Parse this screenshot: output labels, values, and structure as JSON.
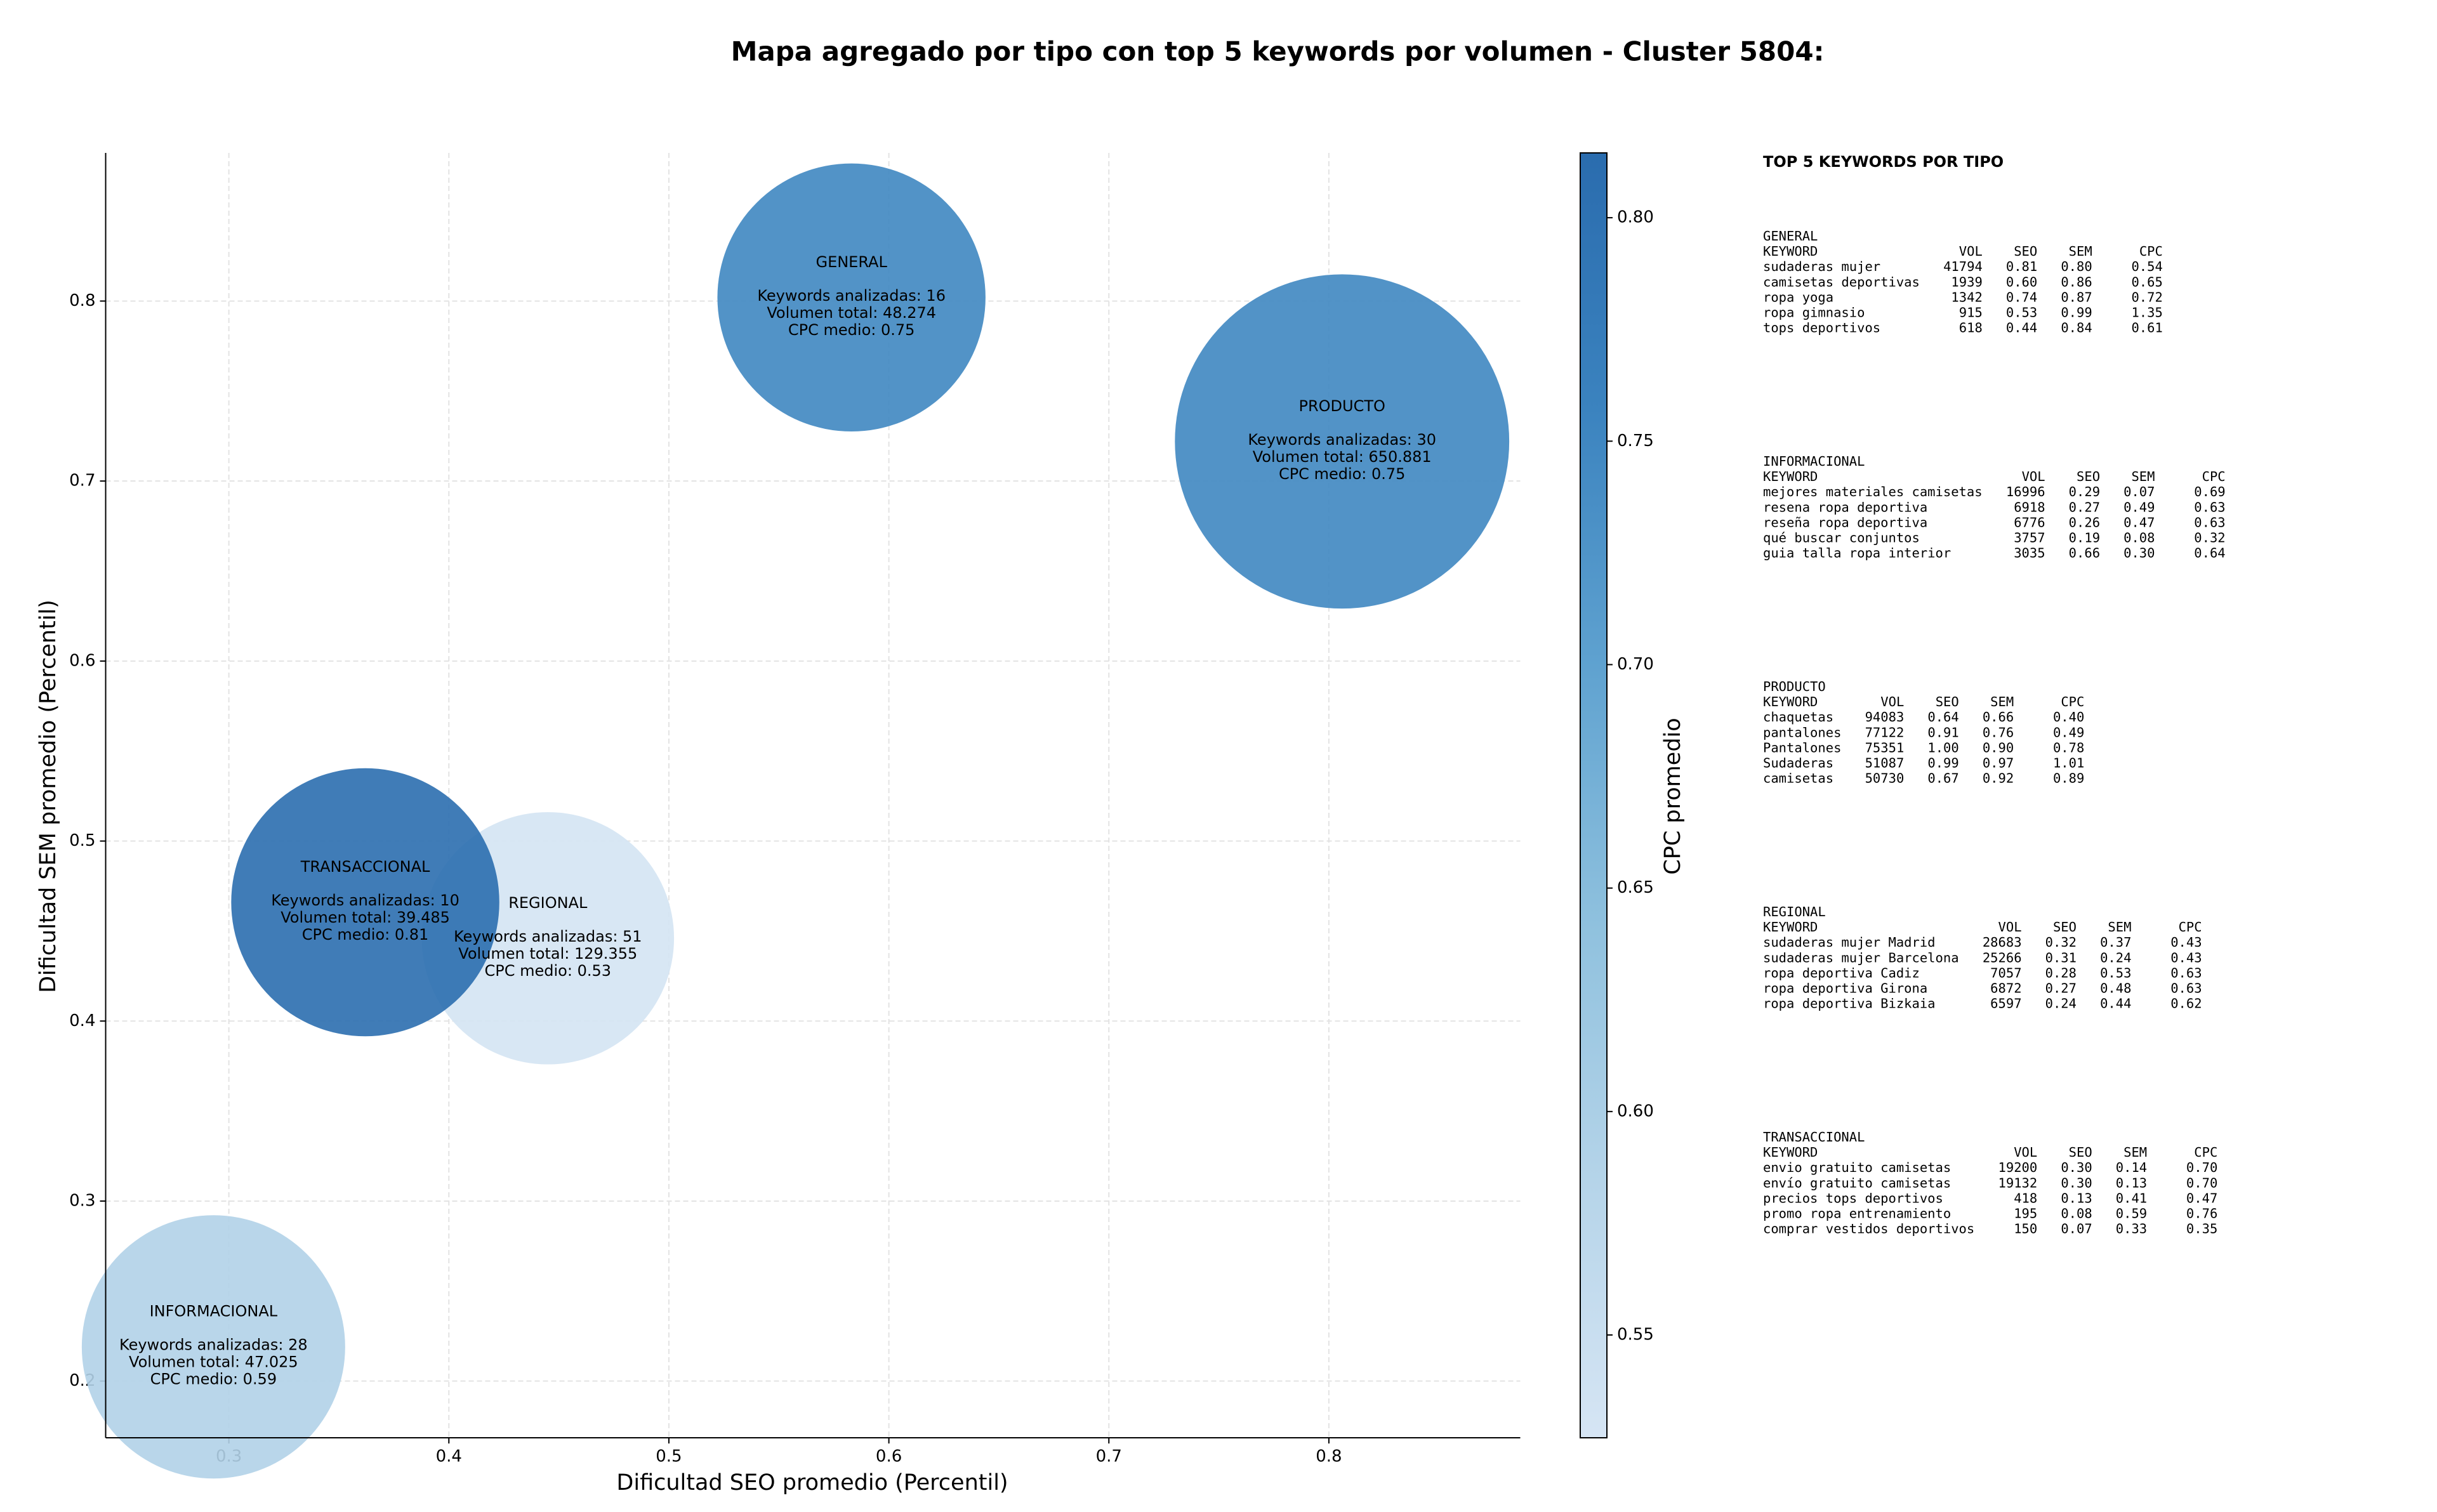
{
  "chart_data": {
    "type": "bubble",
    "title": "Mapa agregado por tipo con top 5 keywords por volumen - Cluster 5804:",
    "xlabel": "Dificultad SEO promedio (Percentil)",
    "ylabel": "Dificultad SEM promedio (Percentil)",
    "xlim": [
      0.244,
      0.887
    ],
    "ylim": [
      0.1685,
      0.8823
    ],
    "xticks": [
      0.3,
      0.4,
      0.5,
      0.6,
      0.7,
      0.8
    ],
    "yticks": [
      0.2,
      0.3,
      0.4,
      0.5,
      0.6,
      0.7,
      0.8
    ],
    "grid": true,
    "colorbar": {
      "label": "CPC promedio",
      "clim": [
        0.527,
        0.8145
      ],
      "ticks": [
        0.55,
        {
          "value": 0.6,
          "label": "0.60"
        },
        0.65,
        {
          "value": 0.7,
          "label": "0.70"
        },
        0.75,
        {
          "value": 0.8,
          "label": "0.80"
        }
      ],
      "colormap": [
        "#d6e5f4",
        "#b5d4e9",
        "#8fc1de",
        "#5fa2d0",
        "#3b83bf",
        "#2a6cae"
      ]
    },
    "points": [
      {
        "name": "GENERAL",
        "x": 0.583,
        "y": 0.802,
        "size": 7225,
        "cpc": 0.75,
        "lines": [
          "Keywords analizadas: 16",
          "Volumen total: 48.274",
          "CPC medio: 0.75"
        ]
      },
      {
        "name": "INFORMACIONAL",
        "x": 0.293,
        "y": 0.219,
        "size": 6972,
        "cpc": 0.59,
        "lines": [
          "Keywords analizadas: 28",
          "Volumen total: 47.025",
          "CPC medio: 0.59"
        ]
      },
      {
        "name": "PRODUCTO",
        "x": 0.806,
        "y": 0.722,
        "size": 11236,
        "cpc": 0.75,
        "lines": [
          "Keywords analizadas: 30",
          "Volumen total: 650.881",
          "CPC medio: 0.75"
        ]
      },
      {
        "name": "REGIONAL",
        "x": 0.445,
        "y": 0.446,
        "size": 6400,
        "cpc": 0.53,
        "lines": [
          "Keywords analizadas: 51",
          "Volumen total: 129.355",
          "CPC medio: 0.53"
        ]
      },
      {
        "name": "TRANSACCIONAL",
        "x": 0.362,
        "y": 0.466,
        "size": 7225,
        "cpc": 0.81,
        "lines": [
          "Keywords analizadas: 10",
          "Volumen total: 39.485",
          "CPC medio: 0.81"
        ]
      }
    ]
  },
  "keyword_panel": {
    "title": "TOP 5 KEYWORDS POR TIPO",
    "columns": [
      "KEYWORD",
      "VOL",
      "SEO",
      "SEM",
      "CPC"
    ],
    "sections": [
      {
        "name": "GENERAL",
        "rows": [
          [
            "sudaderas mujer",
            "41794",
            "0.81",
            "0.80",
            "0.54"
          ],
          [
            "camisetas deportivas",
            "1939",
            "0.60",
            "0.86",
            "0.65"
          ],
          [
            "ropa yoga",
            "1342",
            "0.74",
            "0.87",
            "0.72"
          ],
          [
            "ropa gimnasio",
            "915",
            "0.53",
            "0.99",
            "1.35"
          ],
          [
            "tops deportivos",
            "618",
            "0.44",
            "0.84",
            "0.61"
          ]
        ]
      },
      {
        "name": "INFORMACIONAL",
        "rows": [
          [
            "mejores materiales camisetas",
            "16996",
            "0.29",
            "0.07",
            "0.69"
          ],
          [
            "resena ropa deportiva",
            "6918",
            "0.27",
            "0.49",
            "0.63"
          ],
          [
            "reseña ropa deportiva",
            "6776",
            "0.26",
            "0.47",
            "0.63"
          ],
          [
            "qué buscar conjuntos",
            "3757",
            "0.19",
            "0.08",
            "0.32"
          ],
          [
            "guia talla ropa interior",
            "3035",
            "0.66",
            "0.30",
            "0.64"
          ]
        ]
      },
      {
        "name": "PRODUCTO",
        "rows": [
          [
            "chaquetas",
            "94083",
            "0.64",
            "0.66",
            "0.40"
          ],
          [
            "pantalones",
            "77122",
            "0.91",
            "0.76",
            "0.49"
          ],
          [
            "Pantalones",
            "75351",
            "1.00",
            "0.90",
            "0.78"
          ],
          [
            "Sudaderas",
            "51087",
            "0.99",
            "0.97",
            "1.01"
          ],
          [
            "camisetas",
            "50730",
            "0.67",
            "0.92",
            "0.89"
          ]
        ]
      },
      {
        "name": "REGIONAL",
        "rows": [
          [
            "sudaderas mujer Madrid",
            "28683",
            "0.32",
            "0.37",
            "0.43"
          ],
          [
            "sudaderas mujer Barcelona",
            "25266",
            "0.31",
            "0.24",
            "0.43"
          ],
          [
            "ropa deportiva Cadiz",
            "7057",
            "0.28",
            "0.53",
            "0.63"
          ],
          [
            "ropa deportiva Girona",
            "6872",
            "0.27",
            "0.48",
            "0.63"
          ],
          [
            "ropa deportiva Bizkaia",
            "6597",
            "0.24",
            "0.44",
            "0.62"
          ]
        ]
      },
      {
        "name": "TRANSACCIONAL",
        "rows": [
          [
            "envio gratuito camisetas",
            "19200",
            "0.30",
            "0.14",
            "0.70"
          ],
          [
            "envío gratuito camisetas",
            "19132",
            "0.30",
            "0.13",
            "0.70"
          ],
          [
            "precios tops deportivos",
            "418",
            "0.13",
            "0.41",
            "0.47"
          ],
          [
            "promo ropa entrenamiento",
            "195",
            "0.08",
            "0.59",
            "0.76"
          ],
          [
            "comprar vestidos deportivos",
            "150",
            "0.07",
            "0.33",
            "0.35"
          ]
        ]
      }
    ]
  }
}
